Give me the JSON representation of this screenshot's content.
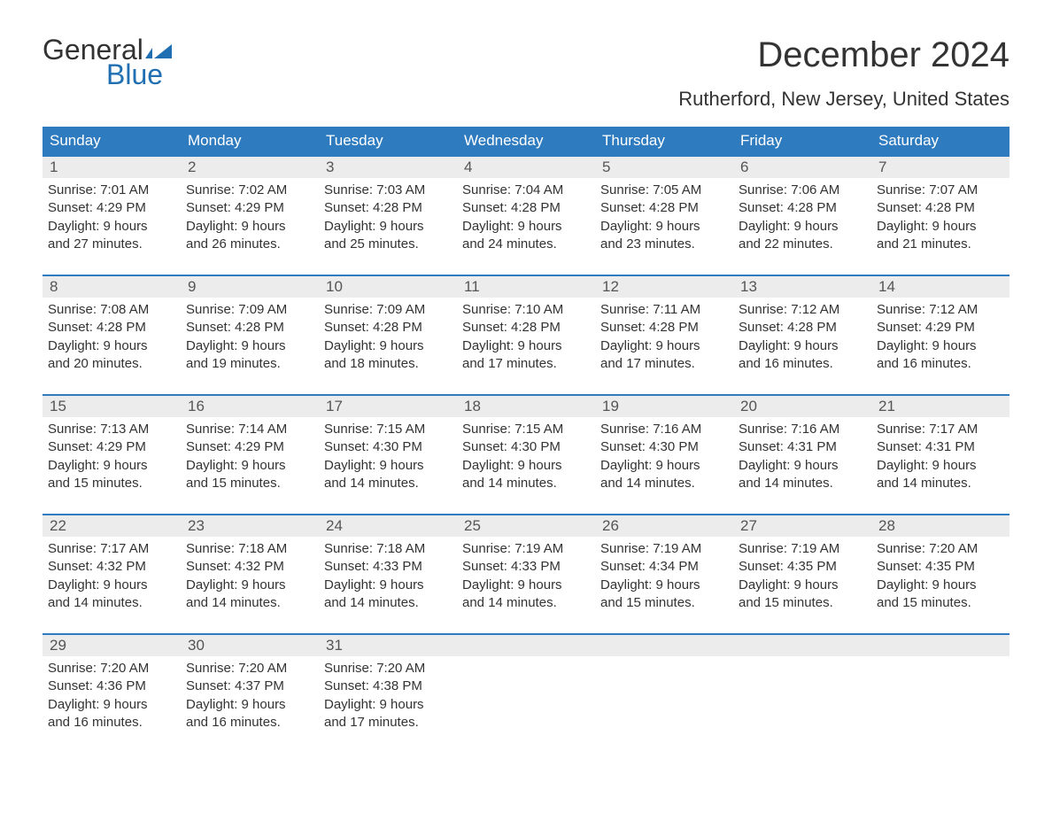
{
  "logo": {
    "word1": "General",
    "word2": "Blue",
    "flag_color": "#1f6fb2"
  },
  "title": "December 2024",
  "location": "Rutherford, New Jersey, United States",
  "colors": {
    "header_bg": "#2f7bbf",
    "header_text": "#ffffff",
    "daynum_bg": "#ececec",
    "week_border": "#2f7bbf",
    "text": "#333333",
    "background": "#ffffff"
  },
  "weekdays": [
    "Sunday",
    "Monday",
    "Tuesday",
    "Wednesday",
    "Thursday",
    "Friday",
    "Saturday"
  ],
  "weeks": [
    [
      {
        "n": "1",
        "sr": "Sunrise: 7:01 AM",
        "ss": "Sunset: 4:29 PM",
        "d1": "Daylight: 9 hours",
        "d2": "and 27 minutes."
      },
      {
        "n": "2",
        "sr": "Sunrise: 7:02 AM",
        "ss": "Sunset: 4:29 PM",
        "d1": "Daylight: 9 hours",
        "d2": "and 26 minutes."
      },
      {
        "n": "3",
        "sr": "Sunrise: 7:03 AM",
        "ss": "Sunset: 4:28 PM",
        "d1": "Daylight: 9 hours",
        "d2": "and 25 minutes."
      },
      {
        "n": "4",
        "sr": "Sunrise: 7:04 AM",
        "ss": "Sunset: 4:28 PM",
        "d1": "Daylight: 9 hours",
        "d2": "and 24 minutes."
      },
      {
        "n": "5",
        "sr": "Sunrise: 7:05 AM",
        "ss": "Sunset: 4:28 PM",
        "d1": "Daylight: 9 hours",
        "d2": "and 23 minutes."
      },
      {
        "n": "6",
        "sr": "Sunrise: 7:06 AM",
        "ss": "Sunset: 4:28 PM",
        "d1": "Daylight: 9 hours",
        "d2": "and 22 minutes."
      },
      {
        "n": "7",
        "sr": "Sunrise: 7:07 AM",
        "ss": "Sunset: 4:28 PM",
        "d1": "Daylight: 9 hours",
        "d2": "and 21 minutes."
      }
    ],
    [
      {
        "n": "8",
        "sr": "Sunrise: 7:08 AM",
        "ss": "Sunset: 4:28 PM",
        "d1": "Daylight: 9 hours",
        "d2": "and 20 minutes."
      },
      {
        "n": "9",
        "sr": "Sunrise: 7:09 AM",
        "ss": "Sunset: 4:28 PM",
        "d1": "Daylight: 9 hours",
        "d2": "and 19 minutes."
      },
      {
        "n": "10",
        "sr": "Sunrise: 7:09 AM",
        "ss": "Sunset: 4:28 PM",
        "d1": "Daylight: 9 hours",
        "d2": "and 18 minutes."
      },
      {
        "n": "11",
        "sr": "Sunrise: 7:10 AM",
        "ss": "Sunset: 4:28 PM",
        "d1": "Daylight: 9 hours",
        "d2": "and 17 minutes."
      },
      {
        "n": "12",
        "sr": "Sunrise: 7:11 AM",
        "ss": "Sunset: 4:28 PM",
        "d1": "Daylight: 9 hours",
        "d2": "and 17 minutes."
      },
      {
        "n": "13",
        "sr": "Sunrise: 7:12 AM",
        "ss": "Sunset: 4:28 PM",
        "d1": "Daylight: 9 hours",
        "d2": "and 16 minutes."
      },
      {
        "n": "14",
        "sr": "Sunrise: 7:12 AM",
        "ss": "Sunset: 4:29 PM",
        "d1": "Daylight: 9 hours",
        "d2": "and 16 minutes."
      }
    ],
    [
      {
        "n": "15",
        "sr": "Sunrise: 7:13 AM",
        "ss": "Sunset: 4:29 PM",
        "d1": "Daylight: 9 hours",
        "d2": "and 15 minutes."
      },
      {
        "n": "16",
        "sr": "Sunrise: 7:14 AM",
        "ss": "Sunset: 4:29 PM",
        "d1": "Daylight: 9 hours",
        "d2": "and 15 minutes."
      },
      {
        "n": "17",
        "sr": "Sunrise: 7:15 AM",
        "ss": "Sunset: 4:30 PM",
        "d1": "Daylight: 9 hours",
        "d2": "and 14 minutes."
      },
      {
        "n": "18",
        "sr": "Sunrise: 7:15 AM",
        "ss": "Sunset: 4:30 PM",
        "d1": "Daylight: 9 hours",
        "d2": "and 14 minutes."
      },
      {
        "n": "19",
        "sr": "Sunrise: 7:16 AM",
        "ss": "Sunset: 4:30 PM",
        "d1": "Daylight: 9 hours",
        "d2": "and 14 minutes."
      },
      {
        "n": "20",
        "sr": "Sunrise: 7:16 AM",
        "ss": "Sunset: 4:31 PM",
        "d1": "Daylight: 9 hours",
        "d2": "and 14 minutes."
      },
      {
        "n": "21",
        "sr": "Sunrise: 7:17 AM",
        "ss": "Sunset: 4:31 PM",
        "d1": "Daylight: 9 hours",
        "d2": "and 14 minutes."
      }
    ],
    [
      {
        "n": "22",
        "sr": "Sunrise: 7:17 AM",
        "ss": "Sunset: 4:32 PM",
        "d1": "Daylight: 9 hours",
        "d2": "and 14 minutes."
      },
      {
        "n": "23",
        "sr": "Sunrise: 7:18 AM",
        "ss": "Sunset: 4:32 PM",
        "d1": "Daylight: 9 hours",
        "d2": "and 14 minutes."
      },
      {
        "n": "24",
        "sr": "Sunrise: 7:18 AM",
        "ss": "Sunset: 4:33 PM",
        "d1": "Daylight: 9 hours",
        "d2": "and 14 minutes."
      },
      {
        "n": "25",
        "sr": "Sunrise: 7:19 AM",
        "ss": "Sunset: 4:33 PM",
        "d1": "Daylight: 9 hours",
        "d2": "and 14 minutes."
      },
      {
        "n": "26",
        "sr": "Sunrise: 7:19 AM",
        "ss": "Sunset: 4:34 PM",
        "d1": "Daylight: 9 hours",
        "d2": "and 15 minutes."
      },
      {
        "n": "27",
        "sr": "Sunrise: 7:19 AM",
        "ss": "Sunset: 4:35 PM",
        "d1": "Daylight: 9 hours",
        "d2": "and 15 minutes."
      },
      {
        "n": "28",
        "sr": "Sunrise: 7:20 AM",
        "ss": "Sunset: 4:35 PM",
        "d1": "Daylight: 9 hours",
        "d2": "and 15 minutes."
      }
    ],
    [
      {
        "n": "29",
        "sr": "Sunrise: 7:20 AM",
        "ss": "Sunset: 4:36 PM",
        "d1": "Daylight: 9 hours",
        "d2": "and 16 minutes."
      },
      {
        "n": "30",
        "sr": "Sunrise: 7:20 AM",
        "ss": "Sunset: 4:37 PM",
        "d1": "Daylight: 9 hours",
        "d2": "and 16 minutes."
      },
      {
        "n": "31",
        "sr": "Sunrise: 7:20 AM",
        "ss": "Sunset: 4:38 PM",
        "d1": "Daylight: 9 hours",
        "d2": "and 17 minutes."
      },
      {
        "empty": true
      },
      {
        "empty": true
      },
      {
        "empty": true
      },
      {
        "empty": true
      }
    ]
  ]
}
